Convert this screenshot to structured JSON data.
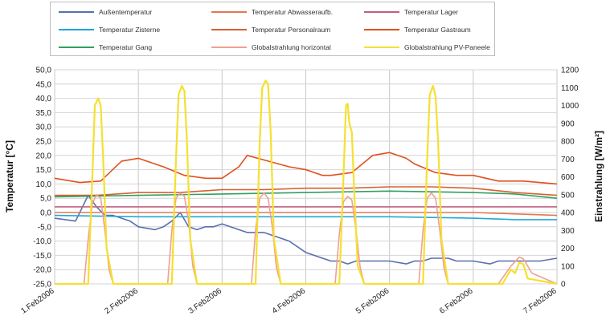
{
  "chart_data": {
    "type": "line",
    "ylabel": "Temperatur  [°C]",
    "y2label": "Einstrahlung  [W/m²]",
    "ylim": [
      -25,
      50
    ],
    "y2lim": [
      0,
      1200
    ],
    "yticks": [
      "50,0",
      "45,0",
      "40,0",
      "35,0",
      "30,0",
      "25,0",
      "20,0",
      "15,0",
      "10,0",
      "5,0",
      "0,0",
      "-5,0",
      "-10,0",
      "-15,0",
      "-20,0",
      "-25,0"
    ],
    "y2ticks": [
      "1200",
      "1100",
      "1000",
      "900",
      "800",
      "700",
      "600",
      "500",
      "400",
      "300",
      "200",
      "100",
      "0"
    ],
    "xlim": [
      0,
      6
    ],
    "xticks": [
      "1.Feb2006",
      "2.Feb2006",
      "3.Feb2006",
      "4.Feb2006",
      "5.Feb2006",
      "6.Feb2006",
      "7.Feb2006"
    ],
    "grid": true,
    "legend_position": "top",
    "series": [
      {
        "name": "Außentemperatur",
        "axis": "left",
        "color": "#5a6fb0",
        "x": [
          0,
          0.25,
          0.4,
          0.5,
          0.6,
          0.7,
          0.8,
          0.9,
          1.0,
          1.2,
          1.3,
          1.4,
          1.5,
          1.6,
          1.7,
          1.8,
          1.9,
          2.0,
          2.2,
          2.3,
          2.4,
          2.5,
          2.6,
          2.7,
          2.8,
          2.9,
          3.0,
          3.2,
          3.3,
          3.4,
          3.5,
          3.6,
          3.7,
          3.8,
          3.9,
          4.0,
          4.2,
          4.3,
          4.4,
          4.5,
          4.6,
          4.7,
          4.8,
          4.9,
          5.0,
          5.2,
          5.3,
          5.4,
          5.5,
          5.6,
          5.8,
          6.0
        ],
        "y": [
          -2,
          -3,
          6,
          2,
          -1,
          -1,
          -2,
          -3,
          -5,
          -6,
          -5,
          -3,
          0,
          -5,
          -6,
          -5,
          -5,
          -4,
          -6,
          -7,
          -7,
          -7,
          -8,
          -9,
          -10,
          -12,
          -14,
          -16,
          -17,
          -17,
          -18,
          -17,
          -17,
          -17,
          -17,
          -17,
          -18,
          -17,
          -17,
          -16,
          -16,
          -16,
          -17,
          -17,
          -17,
          -18,
          -17,
          -17,
          -17,
          -17,
          -17,
          -16
        ]
      },
      {
        "name": "Temperatur Abwasseraufb.",
        "axis": "left",
        "color": "#e07850",
        "x": [
          0,
          1,
          2,
          3,
          4,
          5,
          6
        ],
        "y": [
          0,
          0,
          0,
          0,
          0,
          0,
          -1
        ]
      },
      {
        "name": "Temperatur Lager",
        "axis": "left",
        "color": "#c06080",
        "x": [
          0,
          1,
          2,
          3,
          4,
          5,
          6
        ],
        "y": [
          2,
          2,
          2,
          2,
          2,
          2,
          2
        ]
      },
      {
        "name": "Temperatur Zisterne",
        "axis": "left",
        "color": "#20a8d8",
        "x": [
          0,
          1,
          2,
          3,
          4,
          5,
          5.5,
          6
        ],
        "y": [
          -1,
          -1.5,
          -1.5,
          -1.5,
          -1.5,
          -2,
          -2.5,
          -2.5
        ]
      },
      {
        "name": "Temperatur Personalraum",
        "axis": "left",
        "color": "#d66030",
        "x": [
          0,
          0.5,
          1,
          1.5,
          2,
          2.5,
          3,
          3.5,
          4,
          4.5,
          5,
          5.5,
          6
        ],
        "y": [
          6,
          6,
          7,
          7,
          8,
          8,
          8.5,
          8.5,
          9,
          9,
          8.5,
          7,
          6
        ]
      },
      {
        "name": "Temperatur Gastraum",
        "axis": "left",
        "color": "#e05020",
        "x": [
          0,
          0.3,
          0.55,
          0.8,
          1.0,
          1.2,
          1.3,
          1.55,
          1.8,
          2.0,
          2.2,
          2.3,
          2.55,
          2.8,
          3.0,
          3.2,
          3.3,
          3.55,
          3.8,
          4.0,
          4.2,
          4.3,
          4.55,
          4.8,
          5.0,
          5.3,
          5.6,
          6.0
        ],
        "y": [
          12,
          10.5,
          11,
          18,
          19,
          17,
          16,
          13,
          12,
          12,
          16,
          20,
          18,
          16,
          15,
          13,
          13,
          14,
          20,
          21,
          19,
          17,
          14,
          13,
          13,
          11,
          11,
          10
        ]
      },
      {
        "name": "Temperatur Gang",
        "axis": "left",
        "color": "#30a060",
        "x": [
          0,
          1,
          2,
          3,
          4,
          5,
          5.5,
          6
        ],
        "y": [
          5.5,
          6,
          6.5,
          7,
          7.5,
          7,
          6.5,
          5
        ]
      },
      {
        "name": "Globalstrahlung horizontal",
        "axis": "right",
        "color": "#f0a090",
        "x": [
          0,
          0.35,
          0.4,
          0.45,
          0.5,
          0.55,
          0.6,
          0.65,
          0.7,
          1.35,
          1.4,
          1.45,
          1.5,
          1.55,
          1.6,
          1.65,
          1.7,
          2.35,
          2.4,
          2.45,
          2.5,
          2.55,
          2.6,
          2.65,
          2.7,
          3.35,
          3.4,
          3.45,
          3.5,
          3.55,
          3.6,
          3.65,
          3.7,
          4.35,
          4.4,
          4.45,
          4.5,
          4.55,
          4.6,
          4.65,
          4.7,
          5.3,
          5.45,
          5.55,
          5.6,
          5.7,
          6.0
        ],
        "y": [
          0,
          0,
          250,
          450,
          500,
          480,
          300,
          80,
          0,
          0,
          300,
          480,
          510,
          490,
          350,
          100,
          0,
          0,
          300,
          480,
          510,
          480,
          320,
          90,
          0,
          0,
          280,
          460,
          490,
          470,
          300,
          90,
          0,
          0,
          300,
          480,
          510,
          480,
          300,
          90,
          0,
          0,
          100,
          150,
          140,
          60,
          0
        ]
      },
      {
        "name": "Globalstrahlung PV-Paneele",
        "axis": "right",
        "color": "#f5e030",
        "x": [
          0,
          0.4,
          0.45,
          0.48,
          0.52,
          0.55,
          0.58,
          0.62,
          0.7,
          1.4,
          1.45,
          1.48,
          1.52,
          1.55,
          1.58,
          1.62,
          1.7,
          2.4,
          2.45,
          2.48,
          2.52,
          2.55,
          2.58,
          2.62,
          2.7,
          3.4,
          3.45,
          3.48,
          3.5,
          3.52,
          3.55,
          3.58,
          3.62,
          3.7,
          4.4,
          4.45,
          4.48,
          4.52,
          4.55,
          4.58,
          4.62,
          4.7,
          5.35,
          5.45,
          5.5,
          5.55,
          5.6,
          5.65,
          6.0
        ],
        "y": [
          0,
          0,
          600,
          1000,
          1040,
          1000,
          700,
          200,
          0,
          0,
          700,
          1060,
          1110,
          1080,
          800,
          250,
          0,
          0,
          800,
          1100,
          1140,
          1120,
          850,
          250,
          0,
          0,
          600,
          1000,
          1010,
          900,
          850,
          500,
          100,
          0,
          0,
          700,
          1060,
          1110,
          1050,
          800,
          250,
          0,
          0,
          80,
          60,
          120,
          110,
          30,
          0
        ]
      }
    ]
  }
}
